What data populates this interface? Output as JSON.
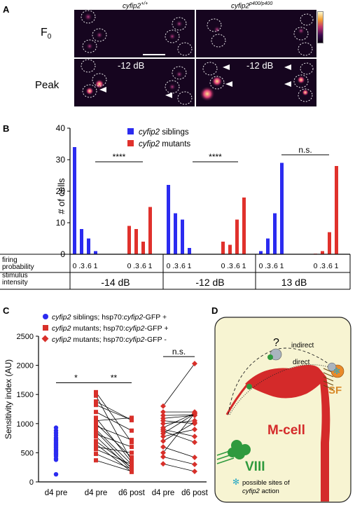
{
  "panel_a": {
    "label": "A",
    "col_wt_italic": "cyfip2",
    "col_wt_sup": "+/+",
    "col_mut_italic": "cyfip2",
    "col_mut_sup": "p400/p400",
    "row_f0": "F",
    "row_f0_sub": "0",
    "row_peak": "Peak",
    "stim_left": "-12 dB",
    "stim_right": "-12 dB",
    "colors": {
      "background": "#16051f",
      "hot": "#fff3b0",
      "warm": "#e0407a",
      "circle": "#ffffff",
      "arrow": "#ffffff"
    }
  },
  "panel_b": {
    "label": "B",
    "ylabel": "# of cells",
    "legend": [
      {
        "italic": "cyfip2",
        "rest": " siblings",
        "color": "#2b2bf0"
      },
      {
        "italic": "cyfip2",
        "rest": " mutants",
        "color": "#e0312c"
      }
    ],
    "row1_label_a": "firing",
    "row1_label_b": "probability",
    "row2_label_a": "stimulus",
    "row2_label_b": "intensity",
    "intensities": [
      "-14 dB",
      "-12 dB",
      "13 dB"
    ],
    "tick_labels": [
      "0",
      ".3",
      ".6",
      "1"
    ],
    "sig": [
      "****",
      "****",
      "n.s."
    ]
  },
  "chart_data": {
    "type": "bar",
    "title": "",
    "ylabel": "# of cells",
    "ylim": [
      0,
      40
    ],
    "yticks": [
      0,
      10,
      20,
      30,
      40
    ],
    "categories": [
      "0",
      ".3",
      ".6",
      "1"
    ],
    "groups": [
      {
        "intensity": "-14 dB",
        "siblings": [
          34,
          8,
          5,
          1
        ],
        "mutants": [
          9,
          8,
          4,
          15
        ]
      },
      {
        "intensity": "-12 dB",
        "siblings": [
          22,
          13,
          11,
          2
        ],
        "mutants": [
          4,
          3,
          11,
          18
        ]
      },
      {
        "intensity": "13 dB",
        "siblings": [
          1,
          5,
          13,
          29
        ],
        "mutants": [
          0,
          1,
          7,
          28
        ]
      }
    ],
    "series_colors": {
      "siblings": "#2b2bf0",
      "mutants": "#e0312c"
    },
    "grid": false
  },
  "panel_c": {
    "label": "C",
    "ylabel": "Sensitivity index (AU)",
    "ylim": [
      0,
      2500
    ],
    "yticks": [
      0,
      500,
      1000,
      1500,
      2000,
      2500
    ],
    "xlabels": [
      "d4 pre",
      "d4 pre",
      "d6 post",
      "d4 pre",
      "d6 post"
    ],
    "legend": [
      {
        "italic": "cyfip2",
        "rest": " siblings; hsp70:",
        "italic2": "cyfip2",
        "rest2": "-GFP +"
      },
      {
        "italic": "cyfip2",
        "rest": " mutants; hsp70:",
        "italic2": "cyfip2",
        "rest2": "-GFP +"
      },
      {
        "italic": "cyfip2",
        "rest": " mutants; hsp70:",
        "italic2": "cyfip2",
        "rest2": "-GFP -"
      }
    ],
    "sig": [
      "*",
      "**",
      "n.s."
    ],
    "colors": {
      "sibling": "#2b2bf0",
      "mutant": "#d8302a"
    },
    "siblings_d4": [
      930,
      880,
      840,
      800,
      760,
      740,
      720,
      700,
      680,
      660,
      640,
      620,
      600,
      580,
      560,
      540,
      520,
      500,
      480,
      460,
      440,
      400,
      380,
      130
    ],
    "gfp_plus_pairs": [
      [
        1540,
        680
      ],
      [
        1480,
        360
      ],
      [
        1380,
        1060
      ],
      [
        1320,
        1060
      ],
      [
        1200,
        880
      ],
      [
        1100,
        340
      ],
      [
        1050,
        1100
      ],
      [
        1000,
        420
      ],
      [
        960,
        720
      ],
      [
        900,
        300
      ],
      [
        870,
        230
      ],
      [
        820,
        600
      ],
      [
        780,
        200
      ],
      [
        700,
        250
      ],
      [
        650,
        170
      ],
      [
        600,
        500
      ],
      [
        560,
        300
      ],
      [
        480,
        220
      ],
      [
        370,
        180
      ]
    ],
    "gfp_minus_pairs": [
      [
        1300,
        2030
      ],
      [
        1200,
        1200
      ],
      [
        1140,
        1150
      ],
      [
        1090,
        1140
      ],
      [
        1050,
        1000
      ],
      [
        1000,
        1050
      ],
      [
        930,
        1180
      ],
      [
        900,
        780
      ],
      [
        870,
        680
      ],
      [
        830,
        1170
      ],
      [
        780,
        900
      ],
      [
        700,
        1020
      ],
      [
        600,
        420
      ],
      [
        500,
        1180
      ],
      [
        430,
        300
      ],
      [
        310,
        180
      ]
    ]
  },
  "panel_d": {
    "label": "D",
    "question": "?",
    "indirect": "indirect",
    "direct": "direct",
    "sf": "SF",
    "mcell": "M-cell",
    "viii": "VIII",
    "legend_line1": "possible sites of",
    "legend_italic": "cyfip2",
    "legend_rest": " action",
    "colors": {
      "bg": "#f7f4d2",
      "mcell": "#d42a2a",
      "viii": "#2f9a3e",
      "sf": "#e98a2a",
      "site": "#7ad9e8",
      "ig": "#aab4bf"
    }
  }
}
